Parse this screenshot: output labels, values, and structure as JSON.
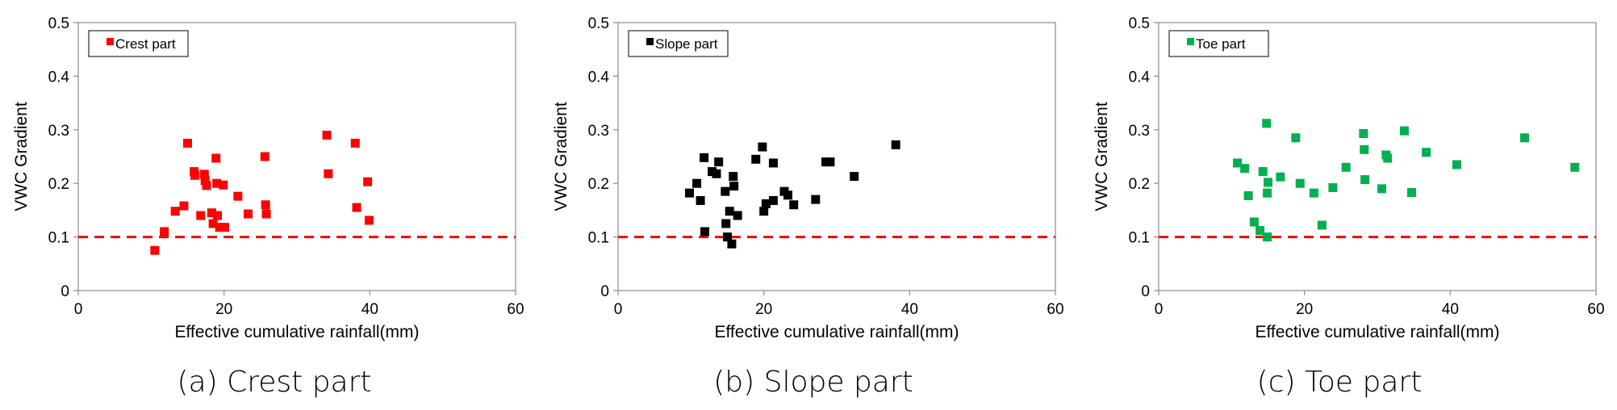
{
  "reference_line": {
    "y": 0.1,
    "color": "#ff0000"
  },
  "chart_data": [
    {
      "type": "scatter",
      "caption": "(a) Crest part",
      "xlabel": "Effective cumulative rainfall(mm)",
      "ylabel": "VWC Gradient",
      "xlim": [
        0,
        60
      ],
      "ylim": [
        0,
        0.5
      ],
      "xticks": [
        "0",
        "20",
        "40",
        "60"
      ],
      "yticks": [
        "0",
        "0.1",
        "0.2",
        "0.3",
        "0.4",
        "0.5"
      ],
      "legend": {
        "label": "Crest part",
        "position": "top-left"
      },
      "series": [
        {
          "name": "Crest part",
          "color": "#ff0000",
          "marker": "square",
          "points": [
            [
              10.5,
              0.075
            ],
            [
              11.8,
              0.11
            ],
            [
              13.3,
              0.148
            ],
            [
              14.5,
              0.158
            ],
            [
              15.0,
              0.275
            ],
            [
              15.9,
              0.222
            ],
            [
              16.0,
              0.215
            ],
            [
              16.8,
              0.14
            ],
            [
              17.3,
              0.217
            ],
            [
              17.4,
              0.205
            ],
            [
              17.6,
              0.196
            ],
            [
              18.3,
              0.145
            ],
            [
              18.5,
              0.125
            ],
            [
              18.9,
              0.247
            ],
            [
              19.0,
              0.2
            ],
            [
              19.1,
              0.14
            ],
            [
              19.4,
              0.118
            ],
            [
              19.9,
              0.197
            ],
            [
              20.1,
              0.118
            ],
            [
              21.9,
              0.176
            ],
            [
              23.3,
              0.143
            ],
            [
              25.6,
              0.25
            ],
            [
              25.7,
              0.16
            ],
            [
              25.8,
              0.143
            ],
            [
              34.1,
              0.29
            ],
            [
              34.3,
              0.218
            ],
            [
              38.0,
              0.275
            ],
            [
              38.2,
              0.155
            ],
            [
              39.7,
              0.203
            ],
            [
              39.9,
              0.131
            ]
          ]
        }
      ]
    },
    {
      "type": "scatter",
      "caption": "(b) Slope part",
      "xlabel": "Effective cumulative rainfall(mm)",
      "ylabel": "VWC Gradient",
      "xlim": [
        0,
        60
      ],
      "ylim": [
        0,
        0.5
      ],
      "xticks": [
        "0",
        "20",
        "40",
        "60"
      ],
      "yticks": [
        "0",
        "0.1",
        "0.2",
        "0.3",
        "0.4",
        "0.5"
      ],
      "legend": {
        "label": "Slope part",
        "position": "top-left"
      },
      "series": [
        {
          "name": "Slope part",
          "color": "#000000",
          "marker": "square",
          "points": [
            [
              9.8,
              0.182
            ],
            [
              10.8,
              0.2
            ],
            [
              11.3,
              0.168
            ],
            [
              11.8,
              0.248
            ],
            [
              11.9,
              0.11
            ],
            [
              12.9,
              0.222
            ],
            [
              13.5,
              0.218
            ],
            [
              13.8,
              0.24
            ],
            [
              14.7,
              0.185
            ],
            [
              14.8,
              0.125
            ],
            [
              15.0,
              0.1
            ],
            [
              15.3,
              0.148
            ],
            [
              15.6,
              0.087
            ],
            [
              15.8,
              0.213
            ],
            [
              15.9,
              0.195
            ],
            [
              16.4,
              0.14
            ],
            [
              18.9,
              0.245
            ],
            [
              19.8,
              0.268
            ],
            [
              20.0,
              0.148
            ],
            [
              20.3,
              0.162
            ],
            [
              21.3,
              0.238
            ],
            [
              21.3,
              0.168
            ],
            [
              22.8,
              0.185
            ],
            [
              23.3,
              0.178
            ],
            [
              24.1,
              0.16
            ],
            [
              27.1,
              0.17
            ],
            [
              28.5,
              0.24
            ],
            [
              29.1,
              0.24
            ],
            [
              32.4,
              0.213
            ],
            [
              38.1,
              0.272
            ]
          ]
        }
      ]
    },
    {
      "type": "scatter",
      "caption": "(c) Toe part",
      "xlabel": "Effective cumulative rainfall(mm)",
      "ylabel": "VWC Gradient",
      "xlim": [
        0,
        60
      ],
      "ylim": [
        0,
        0.5
      ],
      "xticks": [
        "0",
        "20",
        "40",
        "60"
      ],
      "yticks": [
        "0",
        "0.1",
        "0.2",
        "0.3",
        "0.4",
        "0.5"
      ],
      "legend": {
        "label": "Toe part",
        "position": "top-left"
      },
      "series": [
        {
          "name": "Toe part",
          "color": "#00b050",
          "marker": "square",
          "points": [
            [
              10.8,
              0.238
            ],
            [
              11.8,
              0.228
            ],
            [
              12.3,
              0.177
            ],
            [
              13.1,
              0.128
            ],
            [
              13.9,
              0.112
            ],
            [
              14.3,
              0.222
            ],
            [
              14.8,
              0.312
            ],
            [
              14.9,
              0.1
            ],
            [
              14.9,
              0.182
            ],
            [
              15.0,
              0.202
            ],
            [
              16.7,
              0.212
            ],
            [
              18.8,
              0.285
            ],
            [
              19.4,
              0.2
            ],
            [
              21.3,
              0.182
            ],
            [
              22.4,
              0.122
            ],
            [
              23.9,
              0.192
            ],
            [
              25.7,
              0.23
            ],
            [
              28.1,
              0.293
            ],
            [
              28.2,
              0.263
            ],
            [
              28.3,
              0.207
            ],
            [
              30.6,
              0.19
            ],
            [
              31.2,
              0.253
            ],
            [
              31.4,
              0.247
            ],
            [
              33.7,
              0.298
            ],
            [
              34.7,
              0.183
            ],
            [
              36.7,
              0.258
            ],
            [
              40.9,
              0.235
            ],
            [
              50.2,
              0.285
            ],
            [
              57.1,
              0.23
            ]
          ]
        }
      ]
    }
  ]
}
